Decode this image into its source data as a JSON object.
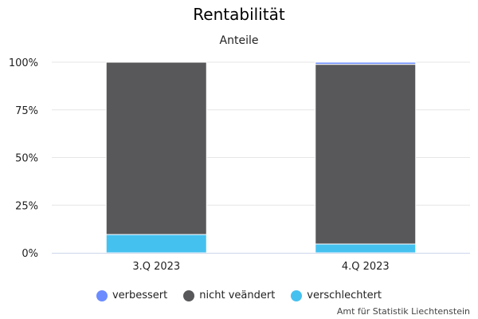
{
  "chart_data": {
    "type": "bar",
    "stacked": true,
    "title": "Rentabilität",
    "subtitle": "Anteile",
    "categories": [
      "3.Q 2023",
      "4.Q 2023"
    ],
    "series": [
      {
        "name": "verbessert",
        "color": "#6b8cff",
        "values": [
          0,
          1.1
        ]
      },
      {
        "name": "nicht veändert",
        "color": "#58585a",
        "values": [
          90.4,
          94.3
        ]
      },
      {
        "name": "verschlechtert",
        "color": "#45c1f0",
        "values": [
          9.6,
          4.6
        ]
      }
    ],
    "ylim": [
      0,
      100
    ],
    "yticks": [
      "0%",
      "25%",
      "50%",
      "75%",
      "100%"
    ],
    "grid": true,
    "legend": "bottom"
  },
  "credit": "Amt für Statistik Liechtenstein"
}
